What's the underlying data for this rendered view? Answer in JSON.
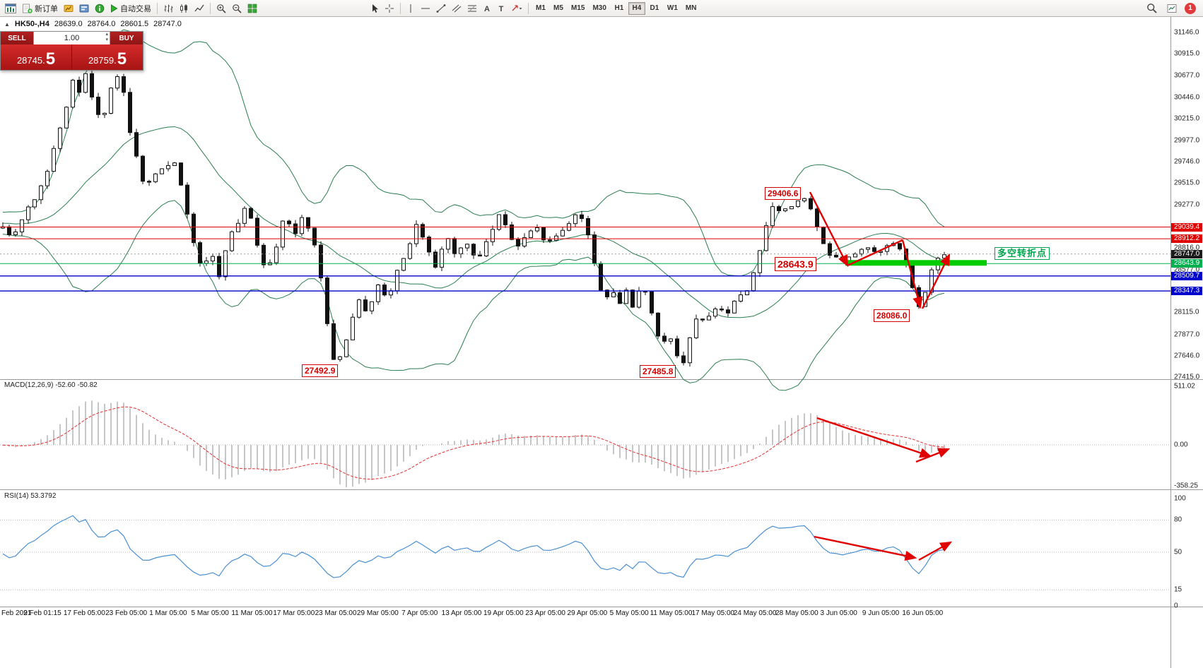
{
  "window": {
    "badge_count": "1"
  },
  "toolbar": {
    "new_order": "新订单",
    "autotrading": "自动交易",
    "timeframes": [
      "M1",
      "M5",
      "M15",
      "M30",
      "H1",
      "H4",
      "D1",
      "W1",
      "MN"
    ],
    "active_timeframe": "H4"
  },
  "symbol_header": {
    "symbol": "HK50-,H4",
    "open": "28639.0",
    "high": "28764.0",
    "low": "28601.5",
    "close": "28747.0"
  },
  "trade_panel": {
    "sell_label": "SELL",
    "buy_label": "BUY",
    "volume": "1.00",
    "sell_price": "28745.",
    "sell_big": "5",
    "buy_price": "28759.",
    "buy_big": "5"
  },
  "annotations": {
    "peak": "29406.6",
    "pivot": "28643.9",
    "trough": "28086.0",
    "low_left": "27492.9",
    "low_mid": "27485.8",
    "turning_point": "多空转折点"
  },
  "panels": {
    "macd_label": "MACD(12,26,9) -52.60 -50.82",
    "rsi_label": "RSI(14) 53.3792"
  },
  "price_scale": {
    "ticks": [
      [
        "31146.0",
        31146.0
      ],
      [
        "30915.0",
        30915.0
      ],
      [
        "30677.0",
        30677.0
      ],
      [
        "30446.0",
        30446.0
      ],
      [
        "30215.0",
        30215.0
      ],
      [
        "29977.0",
        29977.0
      ],
      [
        "29746.0",
        29746.0
      ],
      [
        "29515.0",
        29515.0
      ],
      [
        "29277.0",
        29277.0
      ],
      [
        "28816.0",
        28816.0
      ],
      [
        "28577.0",
        28577.0
      ],
      [
        "28115.0",
        28115.0
      ],
      [
        "27877.0",
        27877.0
      ],
      [
        "27646.0",
        27646.0
      ],
      [
        "27415.0",
        27415.0
      ]
    ],
    "tags": [
      {
        "label": "29039.4",
        "price": 29039.4,
        "bg": "#e00000"
      },
      {
        "label": "28912.2",
        "price": 28912.2,
        "bg": "#e00000"
      },
      {
        "label": "28747.0",
        "price": 28747.0,
        "bg": "#1c1c1c"
      },
      {
        "label": "28643.9",
        "price": 28643.9,
        "bg": "#00b050"
      },
      {
        "label": "28509.7",
        "price": 28509.7,
        "bg": "#0000cc"
      },
      {
        "label": "28347.3",
        "price": 28347.3,
        "bg": "#0000cc"
      }
    ],
    "macd_ticks": [
      [
        "511.02",
        511.02
      ],
      [
        "0.00",
        0
      ],
      [
        "-358.25",
        -358.25
      ]
    ],
    "rsi_ticks": [
      [
        "100",
        100
      ],
      [
        "80",
        80
      ],
      [
        "50",
        50
      ],
      [
        "15",
        15
      ],
      [
        "0",
        0
      ]
    ]
  },
  "time_axis": [
    "Feb 2021",
    "9 Feb 01:15",
    "17 Feb 05:00",
    "23 Feb 05:00",
    "1 Mar 05:00",
    "5 Mar 05:00",
    "11 Mar 05:00",
    "17 Mar 05:00",
    "23 Mar 05:00",
    "29 Mar 05:00",
    "7 Apr 05:00",
    "13 Apr 05:00",
    "19 Apr 05:00",
    "23 Apr 05:00",
    "29 Apr 05:00",
    "5 May 05:00",
    "11 May 05:00",
    "17 May 05:00",
    "24 May 05:00",
    "28 May 05:00",
    "3 Jun 05:00",
    "9 Jun 05:00",
    "16 Jun 05:00"
  ],
  "chart_data": {
    "type": "candlestick",
    "symbol": "HK50-",
    "timeframe": "H4",
    "title": "HK50-,H4 28639.0 28764.0 28601.5 28747.0",
    "price_range": [
      27415,
      31146
    ],
    "levels": {
      "resistance_red": [
        29039.4,
        28912.2
      ],
      "pivot_green": 28643.9,
      "support_blue": [
        28509.7,
        28347.3
      ],
      "current": 28747.0
    },
    "marked_prices": {
      "swing_high": 29406.6,
      "pivot": 28643.9,
      "swing_low": 28086.0,
      "low_march": 27492.9,
      "low_may": 27485.8
    },
    "indicators": {
      "bollinger": {
        "period": 20,
        "deviation": 2
      },
      "macd": {
        "fast": 12,
        "slow": 26,
        "signal": 9,
        "values": [
          -52.6,
          -50.82
        ],
        "scale": [
          511.02,
          0.0,
          -358.25
        ]
      },
      "rsi": {
        "period": 14,
        "value": 53.3792,
        "levels": [
          80,
          50,
          15
        ],
        "scale": [
          0,
          100
        ]
      }
    },
    "colors": {
      "resistance": "#dd0000",
      "pivot": "#00b050",
      "support": "#0000cc",
      "bollinger": "#2a7e50",
      "macd_signal": "#e03030",
      "macd_histogram": "#a8a8a8",
      "rsi_line": "#4a8fd2",
      "trend_arrows": "#e00000",
      "highlight": "#00cc00"
    },
    "price_path": [
      [
        0,
        29080
      ],
      [
        18,
        28920
      ],
      [
        34,
        29180
      ],
      [
        55,
        29400
      ],
      [
        75,
        29850
      ],
      [
        92,
        30300
      ],
      [
        103,
        30650
      ],
      [
        112,
        30480
      ],
      [
        122,
        30750
      ],
      [
        132,
        30340
      ],
      [
        145,
        30180
      ],
      [
        158,
        30550
      ],
      [
        170,
        30720
      ],
      [
        182,
        30140
      ],
      [
        193,
        29800
      ],
      [
        204,
        29480
      ],
      [
        216,
        29580
      ],
      [
        230,
        29680
      ],
      [
        246,
        29760
      ],
      [
        260,
        29380
      ],
      [
        272,
        28950
      ],
      [
        286,
        28580
      ],
      [
        298,
        28780
      ],
      [
        310,
        28520
      ],
      [
        322,
        28880
      ],
      [
        336,
        29080
      ],
      [
        350,
        29280
      ],
      [
        364,
        28860
      ],
      [
        376,
        28560
      ],
      [
        390,
        28820
      ],
      [
        402,
        29140
      ],
      [
        416,
        28960
      ],
      [
        430,
        29180
      ],
      [
        444,
        28880
      ],
      [
        454,
        28480
      ],
      [
        464,
        27920
      ],
      [
        474,
        27560
      ],
      [
        484,
        27660
      ],
      [
        494,
        27920
      ],
      [
        506,
        28260
      ],
      [
        520,
        28120
      ],
      [
        534,
        28440
      ],
      [
        548,
        28260
      ],
      [
        564,
        28600
      ],
      [
        578,
        28820
      ],
      [
        590,
        29120
      ],
      [
        602,
        28860
      ],
      [
        616,
        28620
      ],
      [
        630,
        28940
      ],
      [
        644,
        28760
      ],
      [
        660,
        28860
      ],
      [
        674,
        28660
      ],
      [
        690,
        28900
      ],
      [
        704,
        29180
      ],
      [
        716,
        29040
      ],
      [
        730,
        28800
      ],
      [
        744,
        28940
      ],
      [
        758,
        29040
      ],
      [
        772,
        28860
      ],
      [
        788,
        28960
      ],
      [
        804,
        29060
      ],
      [
        818,
        29180
      ],
      [
        834,
        28940
      ],
      [
        846,
        28460
      ],
      [
        856,
        28220
      ],
      [
        866,
        28360
      ],
      [
        876,
        28210
      ],
      [
        886,
        28360
      ],
      [
        896,
        28160
      ],
      [
        906,
        28400
      ],
      [
        916,
        28340
      ],
      [
        926,
        27960
      ],
      [
        936,
        27760
      ],
      [
        946,
        27900
      ],
      [
        956,
        27710
      ],
      [
        966,
        27520
      ],
      [
        976,
        27860
      ],
      [
        986,
        28090
      ],
      [
        1000,
        28010
      ],
      [
        1014,
        28190
      ],
      [
        1028,
        28110
      ],
      [
        1042,
        28250
      ],
      [
        1056,
        28350
      ],
      [
        1072,
        28700
      ],
      [
        1084,
        29080
      ],
      [
        1094,
        29280
      ],
      [
        1104,
        29200
      ],
      [
        1114,
        29290
      ],
      [
        1124,
        29240
      ],
      [
        1134,
        29360
      ],
      [
        1144,
        29290
      ],
      [
        1154,
        29090
      ],
      [
        1164,
        28890
      ],
      [
        1174,
        28760
      ],
      [
        1184,
        28700
      ],
      [
        1196,
        28690
      ],
      [
        1210,
        28760
      ],
      [
        1224,
        28800
      ],
      [
        1238,
        28760
      ],
      [
        1252,
        28820
      ],
      [
        1266,
        28850
      ],
      [
        1278,
        28760
      ],
      [
        1288,
        28460
      ],
      [
        1298,
        28160
      ],
      [
        1308,
        28300
      ],
      [
        1318,
        28560
      ],
      [
        1330,
        28747
      ],
      [
        1336,
        28747
      ]
    ]
  }
}
